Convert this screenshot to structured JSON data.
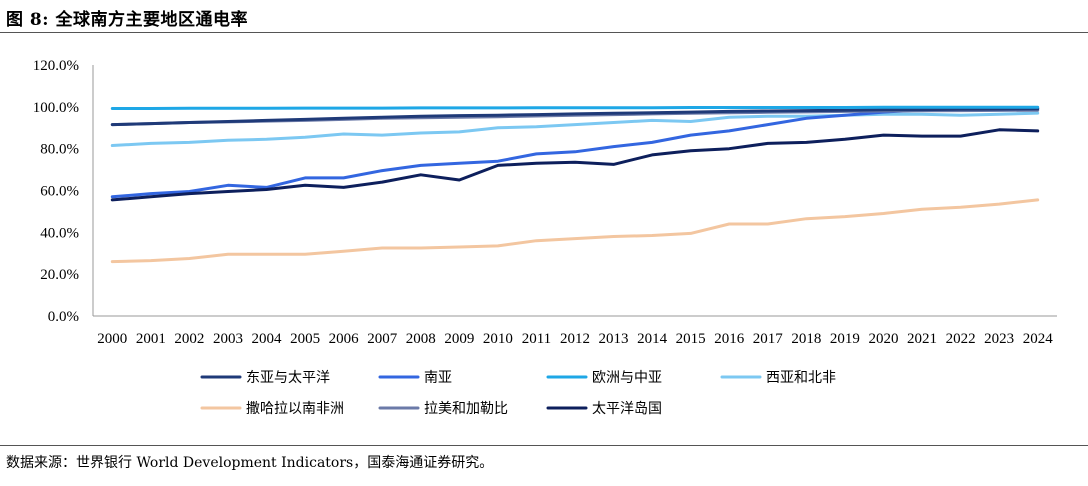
{
  "header": {
    "title": "图 8:  全球南方主要地区通电率"
  },
  "footer": {
    "source": "数据来源：世界银行 World Development Indicators，国泰海通证券研究。"
  },
  "chart_data": {
    "type": "line",
    "title": "",
    "xlabel": "",
    "ylabel": "",
    "ylim": [
      0,
      120
    ],
    "yticks": [
      "0.0%",
      "20.0%",
      "40.0%",
      "60.0%",
      "80.0%",
      "100.0%",
      "120.0%"
    ],
    "ytick_values": [
      0,
      20,
      40,
      60,
      80,
      100,
      120
    ],
    "grid": false,
    "legend_position": "bottom",
    "categories": [
      "2000",
      "2001",
      "2002",
      "2003",
      "2004",
      "2005",
      "2006",
      "2007",
      "2008",
      "2009",
      "2010",
      "2011",
      "2012",
      "2013",
      "2014",
      "2015",
      "2016",
      "2017",
      "2018",
      "2019",
      "2020",
      "2021",
      "2022",
      "2023",
      "2024"
    ],
    "series": [
      {
        "name": "东亚与太平洋",
        "color": "#1f3a78",
        "values": [
          91.5,
          92.0,
          92.5,
          93.0,
          93.5,
          94.0,
          94.5,
          95.0,
          95.5,
          95.8,
          96.0,
          96.3,
          96.6,
          96.9,
          97.2,
          97.5,
          97.8,
          98.0,
          98.2,
          98.4,
          98.6,
          98.7,
          98.8,
          98.9,
          99.0
        ]
      },
      {
        "name": "南亚",
        "color": "#3366e0",
        "values": [
          57.0,
          58.5,
          59.5,
          62.5,
          61.5,
          66.0,
          66.0,
          69.5,
          72.0,
          73.0,
          74.0,
          77.5,
          78.5,
          81.0,
          83.0,
          86.5,
          88.5,
          91.5,
          94.5,
          96.0,
          97.5,
          98.5,
          98.8,
          99.0,
          99.2
        ]
      },
      {
        "name": "欧洲与中亚",
        "color": "#1ea7e6",
        "values": [
          99.2,
          99.2,
          99.3,
          99.3,
          99.3,
          99.4,
          99.4,
          99.4,
          99.5,
          99.5,
          99.5,
          99.6,
          99.6,
          99.6,
          99.6,
          99.7,
          99.7,
          99.7,
          99.7,
          99.7,
          99.8,
          99.8,
          99.8,
          99.8,
          99.8
        ]
      },
      {
        "name": "西亚和北非",
        "color": "#7cc8f2",
        "values": [
          81.5,
          82.5,
          83.0,
          84.0,
          84.5,
          85.5,
          87.0,
          86.5,
          87.5,
          88.0,
          90.0,
          90.5,
          91.5,
          92.5,
          93.5,
          93.0,
          95.0,
          95.5,
          95.5,
          96.0,
          96.5,
          96.5,
          96.0,
          96.5,
          97.0
        ]
      },
      {
        "name": "撒哈拉以南非洲",
        "color": "#f3c6a0",
        "values": [
          26.0,
          26.5,
          27.5,
          29.5,
          29.5,
          29.5,
          31.0,
          32.5,
          32.5,
          33.0,
          33.5,
          36.0,
          37.0,
          38.0,
          38.5,
          39.5,
          44.0,
          44.0,
          46.5,
          47.5,
          49.0,
          51.0,
          52.0,
          53.5,
          55.5
        ]
      },
      {
        "name": "拉美和加勒比",
        "color": "#6b7aa8",
        "values": [
          91.5,
          92.0,
          92.5,
          92.8,
          93.2,
          93.5,
          94.0,
          94.5,
          94.8,
          95.0,
          95.3,
          95.6,
          96.0,
          96.3,
          96.6,
          96.9,
          97.2,
          97.4,
          97.6,
          97.8,
          98.0,
          98.1,
          98.2,
          98.3,
          98.4
        ]
      },
      {
        "name": "太平洋岛国",
        "color": "#0d1f5c",
        "values": [
          55.5,
          57.0,
          58.5,
          59.5,
          60.5,
          62.5,
          61.5,
          64.0,
          67.5,
          65.0,
          72.0,
          73.0,
          73.5,
          72.5,
          77.0,
          79.0,
          80.0,
          82.5,
          83.0,
          84.5,
          86.5,
          86.0,
          86.0,
          89.0,
          88.5
        ]
      }
    ]
  }
}
